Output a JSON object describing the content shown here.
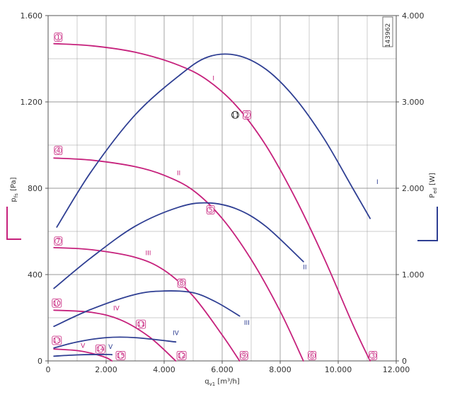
{
  "chart_data": {
    "type": "line",
    "id_label": "143962",
    "x_axis": {
      "label": "q",
      "label_sub": "v1",
      "label_unit": "[m³/h]",
      "range": [
        0,
        12000
      ],
      "ticks": [
        0,
        2000,
        4000,
        6000,
        8000,
        10000,
        12000
      ],
      "tick_labels": [
        "0",
        "2.000",
        "4.000",
        "6.000",
        "8.000",
        "10.000",
        "12.000"
      ]
    },
    "y_left": {
      "label": "p",
      "label_sub": "fs",
      "label_unit": "[Pa]",
      "range": [
        0,
        1600
      ],
      "ticks": [
        0,
        400,
        800,
        1200,
        1600
      ],
      "tick_labels": [
        "0",
        "400",
        "800",
        "1.200",
        "1.600"
      ]
    },
    "y_right": {
      "label": "P",
      "label_sub": "ed",
      "label_unit": "[W]",
      "range": [
        0,
        4000
      ],
      "ticks": [
        0,
        1000,
        2000,
        3000,
        4000
      ],
      "tick_labels": [
        "0",
        "1.000",
        "2.000",
        "3.000",
        "4.000"
      ]
    },
    "colors": {
      "pressure": "#c6217c",
      "power": "#2f3f93",
      "grid": "#9a9a9a",
      "axis": "#555555"
    },
    "grid": true,
    "series": [
      {
        "name": "I",
        "kind": "pressure",
        "x": [
          200,
          1500,
          3000,
          4500,
          5500,
          6500,
          7500,
          8500,
          9500,
          10500,
          11100
        ],
        "y": [
          1470,
          1460,
          1430,
          1370,
          1300,
          1180,
          1000,
          760,
          480,
          170,
          0
        ]
      },
      {
        "name": "II",
        "kind": "pressure",
        "x": [
          200,
          1500,
          3000,
          4000,
          5000,
          6000,
          7000,
          8000,
          8800
        ],
        "y": [
          940,
          930,
          900,
          860,
          790,
          660,
          470,
          230,
          0
        ]
      },
      {
        "name": "III",
        "kind": "pressure",
        "x": [
          200,
          1500,
          3000,
          4000,
          5000,
          6000,
          6600
        ],
        "y": [
          525,
          515,
          480,
          420,
          300,
          120,
          0
        ]
      },
      {
        "name": "IV",
        "kind": "pressure",
        "x": [
          200,
          1500,
          2500,
          3500,
          4400
        ],
        "y": [
          235,
          225,
          190,
          110,
          0
        ]
      },
      {
        "name": "V",
        "kind": "pressure",
        "x": [
          200,
          1000,
          1500,
          2000,
          2200
        ],
        "y": [
          55,
          48,
          35,
          15,
          0
        ]
      },
      {
        "name": "I",
        "kind": "power",
        "x": [
          300,
          1500,
          3000,
          4500,
          5500,
          6500,
          7500,
          8500,
          9500,
          10500,
          11100
        ],
        "y": [
          1550,
          2200,
          2850,
          3300,
          3520,
          3540,
          3380,
          3050,
          2580,
          2000,
          1650
        ]
      },
      {
        "name": "II",
        "kind": "power",
        "x": [
          200,
          1500,
          3000,
          4500,
          5500,
          6500,
          7500,
          8800
        ],
        "y": [
          840,
          1200,
          1560,
          1780,
          1830,
          1760,
          1560,
          1150
        ]
      },
      {
        "name": "III",
        "kind": "power",
        "x": [
          200,
          1500,
          3000,
          4000,
          5000,
          5800,
          6600
        ],
        "y": [
          400,
          600,
          770,
          810,
          790,
          680,
          520
        ]
      },
      {
        "name": "IV",
        "kind": "power",
        "x": [
          200,
          1000,
          2000,
          3000,
          4400
        ],
        "y": [
          150,
          220,
          270,
          270,
          220
        ]
      },
      {
        "name": "V",
        "kind": "power",
        "x": [
          200,
          1000,
          2000,
          2200
        ],
        "y": [
          55,
          70,
          75,
          72
        ]
      }
    ],
    "operating_points": [
      {
        "label": "1",
        "x": 350,
        "y": 1500
      },
      {
        "label": "2",
        "x": 6850,
        "y": 1140
      },
      {
        "label": "3",
        "x": 11200,
        "y": 25
      },
      {
        "label": "4",
        "x": 350,
        "y": 975
      },
      {
        "label": "5",
        "x": 5600,
        "y": 700
      },
      {
        "label": "6",
        "x": 9100,
        "y": 25
      },
      {
        "label": "7",
        "x": 350,
        "y": 555
      },
      {
        "label": "8",
        "x": 4600,
        "y": 360
      },
      {
        "label": "9",
        "x": 6750,
        "y": 25
      },
      {
        "label": "10",
        "x": 300,
        "y": 268
      },
      {
        "label": "11",
        "x": 3200,
        "y": 170
      },
      {
        "label": "12",
        "x": 4600,
        "y": 25
      },
      {
        "label": "13",
        "x": 300,
        "y": 95
      },
      {
        "label": "14",
        "x": 1800,
        "y": 55
      },
      {
        "label": "15",
        "x": 2500,
        "y": 25
      }
    ],
    "operating_point_style": {
      "label": "11",
      "x": 6450,
      "y": 1140
    },
    "curve_labels": [
      {
        "text": "I",
        "kind": "pressure",
        "x": 5700,
        "y": 1300
      },
      {
        "text": "II",
        "kind": "pressure",
        "x": 4500,
        "y": 860
      },
      {
        "text": "III",
        "kind": "pressure",
        "x": 3450,
        "y": 490
      },
      {
        "text": "IV",
        "kind": "pressure",
        "x": 2350,
        "y": 235
      },
      {
        "text": "V",
        "kind": "pressure",
        "x": 1200,
        "y": 60
      },
      {
        "text": "I",
        "kind": "power",
        "x": 11350,
        "y": 2050
      },
      {
        "text": "II",
        "kind": "power",
        "x": 8850,
        "y": 1060
      },
      {
        "text": "III",
        "kind": "power",
        "x": 6850,
        "y": 420
      },
      {
        "text": "IV",
        "kind": "power",
        "x": 4400,
        "y": 300
      },
      {
        "text": "V",
        "kind": "power",
        "x": 2150,
        "y": 140
      }
    ]
  }
}
